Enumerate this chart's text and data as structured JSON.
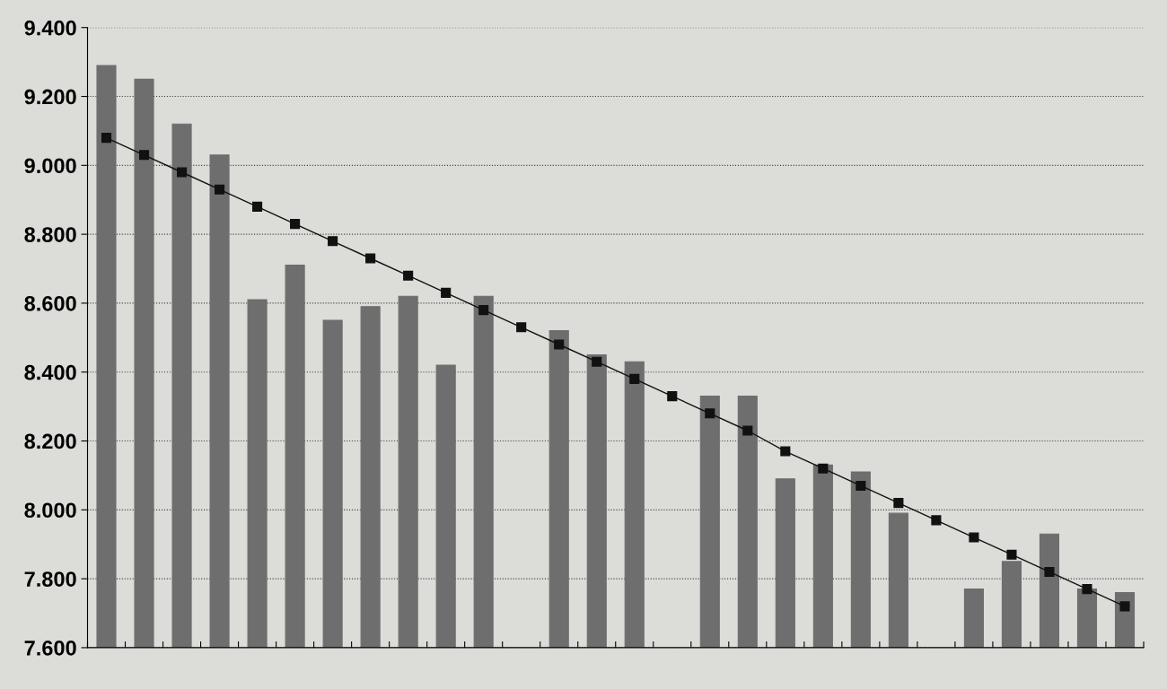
{
  "chart_data": {
    "type": "bar",
    "categories": [
      null,
      null,
      null,
      null,
      null,
      null,
      null,
      null,
      null,
      null,
      null,
      null,
      null,
      null,
      null,
      null,
      null,
      null,
      null,
      null,
      null,
      null,
      null,
      null,
      null,
      null,
      null,
      null
    ],
    "series": [
      {
        "color": "#6e6e6e",
        "values": [
          9.29,
          9.25,
          9.12,
          9.03,
          8.61,
          8.71,
          8.55,
          8.59,
          8.62,
          8.42,
          8.62,
          null,
          8.52,
          8.45,
          8.43,
          null,
          8.33,
          8.33,
          8.09,
          8.13,
          8.11,
          7.99,
          null,
          7.77,
          7.85,
          7.93,
          7.77,
          7.76
        ]
      },
      {
        "type": "line",
        "color": "#111111",
        "marker": "square",
        "values": [
          9.08,
          9.03,
          8.98,
          8.93,
          8.88,
          8.83,
          8.78,
          8.73,
          8.68,
          8.63,
          8.58,
          8.53,
          8.48,
          8.43,
          8.38,
          8.33,
          8.28,
          8.23,
          8.17,
          8.12,
          8.07,
          8.02,
          7.97,
          7.92,
          7.87,
          7.82,
          7.77,
          7.72
        ]
      }
    ],
    "ylim": [
      7.6,
      9.4
    ],
    "yticks": [
      {
        "value": 7.6,
        "label": "7.600"
      },
      {
        "value": 7.8,
        "label": "7.800"
      },
      {
        "value": 8.0,
        "label": "8.000"
      },
      {
        "value": 8.2,
        "label": "8.200"
      },
      {
        "value": 8.4,
        "label": "8.400"
      },
      {
        "value": 8.6,
        "label": "8.600"
      },
      {
        "value": 8.8,
        "label": "8.800"
      },
      {
        "value": 9.0,
        "label": "9.000"
      },
      {
        "value": 9.2,
        "label": "9.200"
      },
      {
        "value": 9.4,
        "label": "9.400"
      }
    ],
    "grid": "y",
    "tick_labels": "y"
  }
}
